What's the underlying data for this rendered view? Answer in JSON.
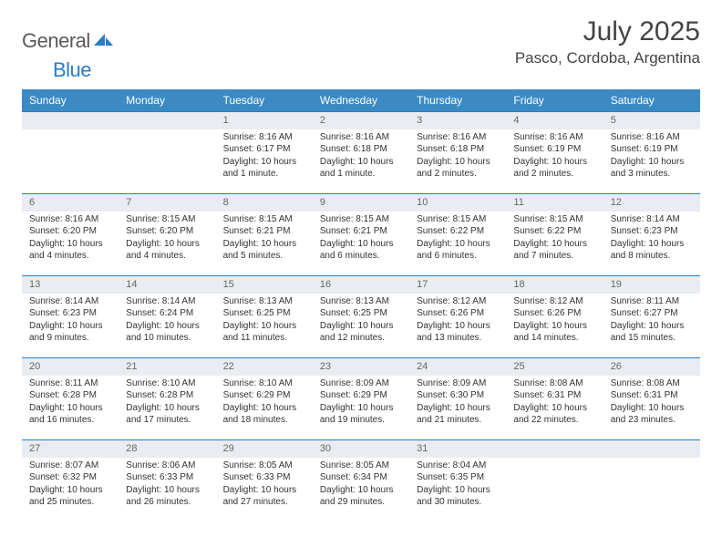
{
  "logo": {
    "word1": "General",
    "word2": "Blue"
  },
  "title": "July 2025",
  "location": "Pasco, Cordoba, Argentina",
  "colors": {
    "header_bg": "#3b8ac4",
    "header_text": "#ffffff",
    "border": "#2a7cc7",
    "daynum_bg": "#e9edf1",
    "text": "#333333",
    "logo_gray": "#5a5a5a"
  },
  "day_labels": [
    "Sunday",
    "Monday",
    "Tuesday",
    "Wednesday",
    "Thursday",
    "Friday",
    "Saturday"
  ],
  "weeks": [
    [
      null,
      null,
      {
        "n": "1",
        "sr": "8:16 AM",
        "ss": "6:17 PM",
        "d": "10 hours and 1 minute."
      },
      {
        "n": "2",
        "sr": "8:16 AM",
        "ss": "6:18 PM",
        "d": "10 hours and 1 minute."
      },
      {
        "n": "3",
        "sr": "8:16 AM",
        "ss": "6:18 PM",
        "d": "10 hours and 2 minutes."
      },
      {
        "n": "4",
        "sr": "8:16 AM",
        "ss": "6:19 PM",
        "d": "10 hours and 2 minutes."
      },
      {
        "n": "5",
        "sr": "8:16 AM",
        "ss": "6:19 PM",
        "d": "10 hours and 3 minutes."
      }
    ],
    [
      {
        "n": "6",
        "sr": "8:16 AM",
        "ss": "6:20 PM",
        "d": "10 hours and 4 minutes."
      },
      {
        "n": "7",
        "sr": "8:15 AM",
        "ss": "6:20 PM",
        "d": "10 hours and 4 minutes."
      },
      {
        "n": "8",
        "sr": "8:15 AM",
        "ss": "6:21 PM",
        "d": "10 hours and 5 minutes."
      },
      {
        "n": "9",
        "sr": "8:15 AM",
        "ss": "6:21 PM",
        "d": "10 hours and 6 minutes."
      },
      {
        "n": "10",
        "sr": "8:15 AM",
        "ss": "6:22 PM",
        "d": "10 hours and 6 minutes."
      },
      {
        "n": "11",
        "sr": "8:15 AM",
        "ss": "6:22 PM",
        "d": "10 hours and 7 minutes."
      },
      {
        "n": "12",
        "sr": "8:14 AM",
        "ss": "6:23 PM",
        "d": "10 hours and 8 minutes."
      }
    ],
    [
      {
        "n": "13",
        "sr": "8:14 AM",
        "ss": "6:23 PM",
        "d": "10 hours and 9 minutes."
      },
      {
        "n": "14",
        "sr": "8:14 AM",
        "ss": "6:24 PM",
        "d": "10 hours and 10 minutes."
      },
      {
        "n": "15",
        "sr": "8:13 AM",
        "ss": "6:25 PM",
        "d": "10 hours and 11 minutes."
      },
      {
        "n": "16",
        "sr": "8:13 AM",
        "ss": "6:25 PM",
        "d": "10 hours and 12 minutes."
      },
      {
        "n": "17",
        "sr": "8:12 AM",
        "ss": "6:26 PM",
        "d": "10 hours and 13 minutes."
      },
      {
        "n": "18",
        "sr": "8:12 AM",
        "ss": "6:26 PM",
        "d": "10 hours and 14 minutes."
      },
      {
        "n": "19",
        "sr": "8:11 AM",
        "ss": "6:27 PM",
        "d": "10 hours and 15 minutes."
      }
    ],
    [
      {
        "n": "20",
        "sr": "8:11 AM",
        "ss": "6:28 PM",
        "d": "10 hours and 16 minutes."
      },
      {
        "n": "21",
        "sr": "8:10 AM",
        "ss": "6:28 PM",
        "d": "10 hours and 17 minutes."
      },
      {
        "n": "22",
        "sr": "8:10 AM",
        "ss": "6:29 PM",
        "d": "10 hours and 18 minutes."
      },
      {
        "n": "23",
        "sr": "8:09 AM",
        "ss": "6:29 PM",
        "d": "10 hours and 19 minutes."
      },
      {
        "n": "24",
        "sr": "8:09 AM",
        "ss": "6:30 PM",
        "d": "10 hours and 21 minutes."
      },
      {
        "n": "25",
        "sr": "8:08 AM",
        "ss": "6:31 PM",
        "d": "10 hours and 22 minutes."
      },
      {
        "n": "26",
        "sr": "8:08 AM",
        "ss": "6:31 PM",
        "d": "10 hours and 23 minutes."
      }
    ],
    [
      {
        "n": "27",
        "sr": "8:07 AM",
        "ss": "6:32 PM",
        "d": "10 hours and 25 minutes."
      },
      {
        "n": "28",
        "sr": "8:06 AM",
        "ss": "6:33 PM",
        "d": "10 hours and 26 minutes."
      },
      {
        "n": "29",
        "sr": "8:05 AM",
        "ss": "6:33 PM",
        "d": "10 hours and 27 minutes."
      },
      {
        "n": "30",
        "sr": "8:05 AM",
        "ss": "6:34 PM",
        "d": "10 hours and 29 minutes."
      },
      {
        "n": "31",
        "sr": "8:04 AM",
        "ss": "6:35 PM",
        "d": "10 hours and 30 minutes."
      },
      null,
      null
    ]
  ],
  "labels": {
    "sunrise": "Sunrise:",
    "sunset": "Sunset:",
    "daylight": "Daylight:"
  }
}
